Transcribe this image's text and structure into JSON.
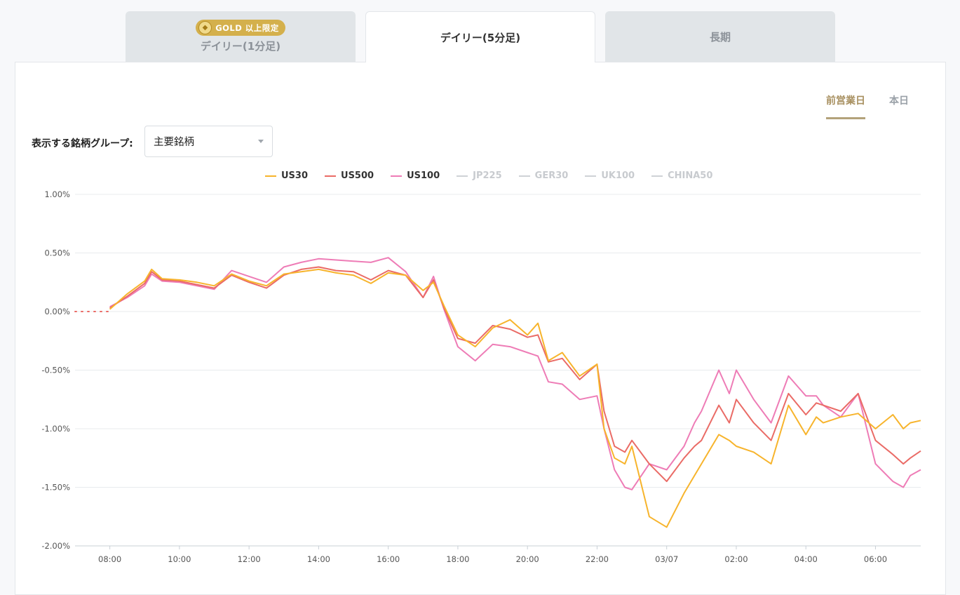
{
  "tabs": [
    {
      "label": "デイリー(1分足)",
      "badge": "GOLD 以上限定",
      "active": false
    },
    {
      "label": "デイリー(5分足)",
      "active": true
    },
    {
      "label": "長期",
      "active": false
    }
  ],
  "day_switch": [
    {
      "label": "前営業日",
      "active": true
    },
    {
      "label": "本日",
      "active": false
    }
  ],
  "group": {
    "label": "表示する銘柄グループ:",
    "selected": "主要銘柄"
  },
  "colors": {
    "US30": "#f7b42c",
    "US500": "#ea6b66",
    "US100": "#ee7cb6",
    "inactive": "#cfd2d6"
  },
  "chart_data": {
    "type": "line",
    "title": "",
    "xlabel": "",
    "ylabel": "",
    "ylim": [
      -2.0,
      1.0
    ],
    "y_ticks": [
      "1.00%",
      "0.50%",
      "0.00%",
      "-0.50%",
      "-1.00%",
      "-1.50%",
      "-2.00%"
    ],
    "x_ticks": [
      "08:00",
      "10:00",
      "12:00",
      "14:00",
      "16:00",
      "18:00",
      "20:00",
      "22:00",
      "03/07",
      "02:00",
      "04:00",
      "06:00"
    ],
    "x_unit": "hours since 08:00",
    "x_range": [
      -1.0,
      23.3
    ],
    "grid": true,
    "legend_position": "top",
    "pre_open": {
      "x": [
        -1.0,
        0.0
      ],
      "y": [
        0.0,
        0.0
      ]
    },
    "series": [
      {
        "name": "US30",
        "active": true,
        "x": [
          0.0,
          0.5,
          1.0,
          1.2,
          1.5,
          2.0,
          2.5,
          3.0,
          3.5,
          4.0,
          4.5,
          5.0,
          5.5,
          6.0,
          6.5,
          7.0,
          7.5,
          8.0,
          8.5,
          9.0,
          9.3,
          9.6,
          10.0,
          10.5,
          11.0,
          11.5,
          12.0,
          12.3,
          12.6,
          13.0,
          13.5,
          14.0,
          14.2,
          14.5,
          14.8,
          15.0,
          15.5,
          16.0,
          16.5,
          16.8,
          17.0,
          17.5,
          17.8,
          18.0,
          18.5,
          19.0,
          19.5,
          20.0,
          20.3,
          20.5,
          21.0,
          21.5,
          22.0,
          22.5,
          22.8,
          23.0,
          23.3
        ],
        "y": [
          0.02,
          0.15,
          0.26,
          0.36,
          0.28,
          0.27,
          0.25,
          0.22,
          0.32,
          0.26,
          0.22,
          0.32,
          0.34,
          0.36,
          0.33,
          0.31,
          0.24,
          0.33,
          0.31,
          0.18,
          0.25,
          0.05,
          -0.2,
          -0.3,
          -0.14,
          -0.07,
          -0.2,
          -0.1,
          -0.42,
          -0.35,
          -0.55,
          -0.45,
          -1.0,
          -1.25,
          -1.3,
          -1.15,
          -1.75,
          -1.84,
          -1.55,
          -1.4,
          -1.3,
          -1.05,
          -1.1,
          -1.15,
          -1.2,
          -1.3,
          -0.8,
          -1.05,
          -0.9,
          -0.95,
          -0.9,
          -0.87,
          -1.0,
          -0.88,
          -1.0,
          -0.95,
          -0.93
        ]
      },
      {
        "name": "US500",
        "active": true,
        "x": [
          0.0,
          0.5,
          1.0,
          1.2,
          1.5,
          2.0,
          2.5,
          3.0,
          3.5,
          4.0,
          4.5,
          5.0,
          5.5,
          6.0,
          6.5,
          7.0,
          7.5,
          8.0,
          8.5,
          9.0,
          9.3,
          9.6,
          10.0,
          10.5,
          11.0,
          11.5,
          12.0,
          12.3,
          12.6,
          13.0,
          13.5,
          14.0,
          14.2,
          14.5,
          14.8,
          15.0,
          15.5,
          16.0,
          16.5,
          16.8,
          17.0,
          17.5,
          17.8,
          18.0,
          18.5,
          19.0,
          19.5,
          20.0,
          20.3,
          20.5,
          21.0,
          21.5,
          22.0,
          22.5,
          22.8,
          23.0,
          23.3
        ],
        "y": [
          0.03,
          0.13,
          0.24,
          0.34,
          0.27,
          0.26,
          0.23,
          0.2,
          0.31,
          0.25,
          0.2,
          0.31,
          0.36,
          0.38,
          0.35,
          0.34,
          0.27,
          0.35,
          0.31,
          0.12,
          0.27,
          0.03,
          -0.23,
          -0.27,
          -0.12,
          -0.15,
          -0.22,
          -0.2,
          -0.43,
          -0.4,
          -0.58,
          -0.45,
          -0.85,
          -1.15,
          -1.2,
          -1.1,
          -1.3,
          -1.45,
          -1.25,
          -1.15,
          -1.1,
          -0.8,
          -0.95,
          -0.75,
          -0.95,
          -1.1,
          -0.7,
          -0.88,
          -0.78,
          -0.8,
          -0.85,
          -0.7,
          -1.1,
          -1.22,
          -1.3,
          -1.25,
          -1.19
        ]
      },
      {
        "name": "US100",
        "active": true,
        "x": [
          0.0,
          0.5,
          1.0,
          1.2,
          1.5,
          2.0,
          2.5,
          3.0,
          3.5,
          4.0,
          4.5,
          5.0,
          5.5,
          6.0,
          6.5,
          7.0,
          7.5,
          8.0,
          8.5,
          9.0,
          9.3,
          9.6,
          10.0,
          10.5,
          11.0,
          11.5,
          12.0,
          12.3,
          12.6,
          13.0,
          13.5,
          14.0,
          14.2,
          14.5,
          14.8,
          15.0,
          15.5,
          16.0,
          16.5,
          16.8,
          17.0,
          17.5,
          17.8,
          18.0,
          18.5,
          19.0,
          19.5,
          20.0,
          20.3,
          20.5,
          21.0,
          21.5,
          22.0,
          22.5,
          22.8,
          23.0,
          23.3
        ],
        "y": [
          0.04,
          0.12,
          0.22,
          0.32,
          0.26,
          0.25,
          0.22,
          0.19,
          0.35,
          0.3,
          0.25,
          0.38,
          0.42,
          0.45,
          0.44,
          0.43,
          0.42,
          0.46,
          0.34,
          0.12,
          0.3,
          0.02,
          -0.3,
          -0.42,
          -0.28,
          -0.3,
          -0.35,
          -0.38,
          -0.6,
          -0.62,
          -0.75,
          -0.72,
          -1.0,
          -1.35,
          -1.5,
          -1.52,
          -1.3,
          -1.35,
          -1.15,
          -0.95,
          -0.85,
          -0.5,
          -0.7,
          -0.5,
          -0.75,
          -0.95,
          -0.55,
          -0.72,
          -0.72,
          -0.8,
          -0.9,
          -0.7,
          -1.3,
          -1.45,
          -1.5,
          -1.4,
          -1.35
        ]
      },
      {
        "name": "JP225",
        "active": false
      },
      {
        "name": "GER30",
        "active": false
      },
      {
        "name": "UK100",
        "active": false
      },
      {
        "name": "CHINA50",
        "active": false
      }
    ]
  }
}
